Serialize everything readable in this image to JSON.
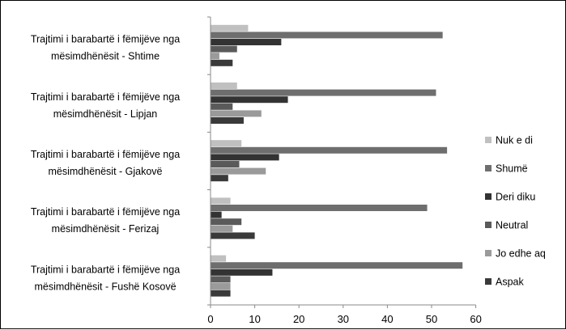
{
  "chart_data": {
    "type": "bar",
    "orientation": "horizontal",
    "categories": [
      [
        "Trajtimi i barabartë i fëmijëve nga",
        "mësimdhënësit - Shtime"
      ],
      [
        "Trajtimi i barabartë i fëmijëve nga",
        "mësimdhënësit - Lipjan"
      ],
      [
        "Trajtimi i barabartë i fëmijëve nga",
        "mësimdhënësit - Gjakovë"
      ],
      [
        "Trajtimi i barabartë i fëmijëve nga",
        "mësimdhënësit - Ferizaj"
      ],
      [
        "Trajtimi i barabartë i fëmijëve nga",
        "mësimdhënësit - Fushë Kosovë"
      ]
    ],
    "series": [
      {
        "name": "Nuk e di",
        "color": "#c0c0c0",
        "values": [
          8.5,
          6,
          7,
          4.5,
          3.5
        ]
      },
      {
        "name": "Shumë",
        "color": "#6e6e6e",
        "values": [
          52.5,
          51,
          53.5,
          49,
          57
        ]
      },
      {
        "name": "Deri diku",
        "color": "#333333",
        "values": [
          16,
          17.5,
          15.5,
          2.5,
          14
        ]
      },
      {
        "name": "Neutral",
        "color": "#5a5a5a",
        "values": [
          6,
          5,
          6.5,
          7,
          4.5
        ]
      },
      {
        "name": "Jo edhe aq",
        "color": "#9a9a9a",
        "values": [
          2,
          11.5,
          12.5,
          5,
          4.5
        ]
      },
      {
        "name": "Aspak",
        "color": "#3a3a3a",
        "values": [
          5,
          7.5,
          4,
          10,
          4.5
        ]
      }
    ],
    "xlim": [
      0,
      60
    ],
    "xticks": [
      "0",
      "10",
      "20",
      "30",
      "40",
      "50",
      "60"
    ],
    "grid": "none",
    "legend_position": "right"
  }
}
